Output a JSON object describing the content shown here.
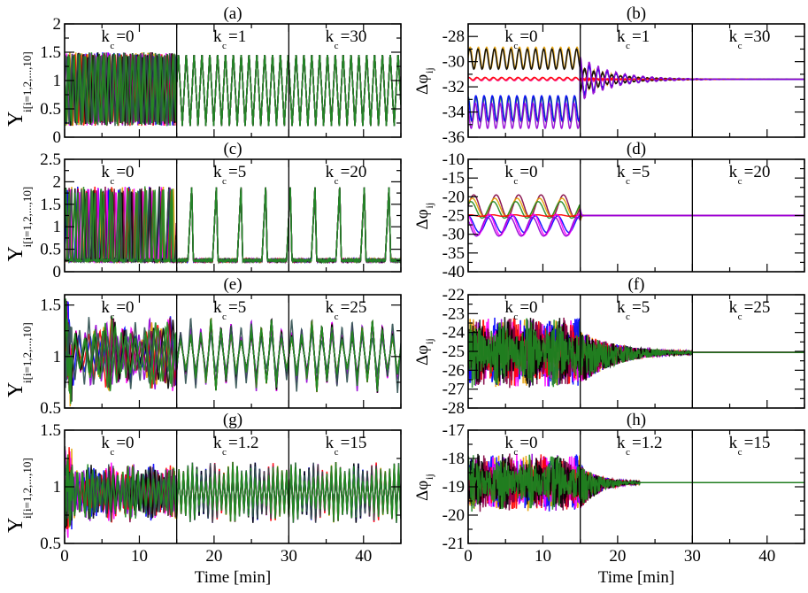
{
  "chart_data": [
    {
      "id": "a",
      "type": "line",
      "title": "(a)",
      "ylabel_main": "Y",
      "ylabel_sub": "i[i=1,2,...,10]",
      "xlabel": "",
      "xlim": [
        0,
        45
      ],
      "ylim": [
        0,
        2
      ],
      "yticks": [
        "0",
        "0.5",
        "1",
        "1.5",
        "2"
      ],
      "ytick_values": [
        0,
        0.5,
        1,
        1.5,
        2
      ],
      "xticks": [
        0,
        10,
        20,
        30,
        40
      ],
      "show_xtick_labels": false,
      "segments": [
        {
          "label": "k",
          "sub": "c",
          "value": "=0",
          "t0": 0,
          "t1": 15
        },
        {
          "label": "k",
          "sub": "c",
          "value": "=1",
          "t0": 15,
          "t1": 30
        },
        {
          "label": "k",
          "sub": "c",
          "value": "=30",
          "t0": 30,
          "t1": 45
        }
      ],
      "kind": "sine",
      "baseline": 0.85,
      "amp": 0.65,
      "period": 1.0,
      "series_count": 10
    },
    {
      "id": "b",
      "type": "line",
      "title": "(b)",
      "ylabel_main": "Δφ",
      "ylabel_sub": "ij",
      "xlabel": "",
      "xlim": [
        0,
        45
      ],
      "ylim": [
        -36,
        -27
      ],
      "yticks": [
        "-36",
        "-34",
        "-32",
        "-30",
        "-28"
      ],
      "ytick_values": [
        -36,
        -34,
        -32,
        -30,
        -28
      ],
      "xticks": [
        0,
        10,
        20,
        30,
        40
      ],
      "show_xtick_labels": false,
      "segments": [
        {
          "label": "k",
          "sub": "c",
          "value": "=0",
          "t0": 0,
          "t1": 15
        },
        {
          "label": "k",
          "sub": "c",
          "value": "=1",
          "t0": 15,
          "t1": 30
        },
        {
          "label": "k",
          "sub": "c",
          "value": "=30",
          "t0": 30,
          "t1": 45
        }
      ],
      "kind": "phase",
      "converge": -31.4,
      "bands": [
        {
          "color": "#e69f00",
          "center": -29.7,
          "amp": 0.85
        },
        {
          "color": "#000000",
          "center": -29.8,
          "amp": 0.8
        },
        {
          "color": "#ff1493",
          "center": -31.4,
          "amp": 0.12
        },
        {
          "color": "#ff0000",
          "center": -31.35,
          "amp": 0.1
        },
        {
          "color": "#228b22",
          "center": -33.8,
          "amp": 1.0
        },
        {
          "color": "#0000ff",
          "center": -33.7,
          "amp": 1.0
        },
        {
          "color": "#9400d3",
          "center": -34.3,
          "amp": 1.0
        }
      ],
      "settle_time": 30
    },
    {
      "id": "c",
      "type": "line",
      "title": "(c)",
      "ylabel_main": "Y",
      "ylabel_sub": "i[i=1,2,...,10]",
      "xlabel": "",
      "xlim": [
        0,
        45
      ],
      "ylim": [
        0,
        2.5
      ],
      "yticks": [
        "0",
        "0.5",
        "1",
        "1.5",
        "2",
        "2.5"
      ],
      "ytick_values": [
        0,
        0.5,
        1,
        1.5,
        2,
        2.5
      ],
      "xticks": [
        0,
        10,
        20,
        30,
        40
      ],
      "show_xtick_labels": false,
      "segments": [
        {
          "label": "k",
          "sub": "c",
          "value": "=0",
          "t0": 0,
          "t1": 15
        },
        {
          "label": "k",
          "sub": "c",
          "value": "=5",
          "t0": 15,
          "t1": 30
        },
        {
          "label": "k",
          "sub": "c",
          "value": "=20",
          "t0": 30,
          "t1": 45
        }
      ],
      "kind": "spike",
      "low": 0.25,
      "high": 1.9,
      "period_free": 1.2,
      "period_sync": 3.3,
      "series_count": 10
    },
    {
      "id": "d",
      "type": "line",
      "title": "(d)",
      "ylabel_main": "Δφ",
      "ylabel_sub": "ij",
      "xlabel": "",
      "xlim": [
        0,
        45
      ],
      "ylim": [
        -40,
        -10
      ],
      "yticks": [
        "-40",
        "-35",
        "-30",
        "-25",
        "-20",
        "-15",
        "-10"
      ],
      "ytick_values": [
        -40,
        -35,
        -30,
        -25,
        -20,
        -15,
        -10
      ],
      "xticks": [
        0,
        10,
        20,
        30,
        40
      ],
      "show_xtick_labels": false,
      "segments": [
        {
          "label": "k",
          "sub": "c",
          "value": "=0",
          "t0": 0,
          "t1": 15
        },
        {
          "label": "k",
          "sub": "c",
          "value": "=5",
          "t0": 15,
          "t1": 30
        },
        {
          "label": "k",
          "sub": "c",
          "value": "=20",
          "t0": 30,
          "t1": 45
        }
      ],
      "kind": "phase",
      "converge": -25,
      "bands": [
        {
          "color": "#800040",
          "center": -22.5,
          "amp": 3.0
        },
        {
          "color": "#e69f00",
          "center": -22.8,
          "amp": 2.4
        },
        {
          "color": "#228b22",
          "center": -23.5,
          "amp": 2.2
        },
        {
          "color": "#ff0000",
          "center": -25.0,
          "amp": 0.2
        },
        {
          "color": "#0000ff",
          "center": -27.3,
          "amp": 2.2
        },
        {
          "color": "#ff00ff",
          "center": -27.5,
          "amp": 2.8
        },
        {
          "color": "#9400d3",
          "center": -28.0,
          "amp": 2.5
        }
      ],
      "settle_time": 15.5
    },
    {
      "id": "e",
      "type": "line",
      "title": "(e)",
      "ylabel_main": "Y",
      "ylabel_sub": "i[i=1,2,...,10]",
      "xlabel": "",
      "xlim": [
        0,
        45
      ],
      "ylim": [
        0.5,
        1.6
      ],
      "yticks": [
        "0.5",
        "1",
        "1.5"
      ],
      "ytick_values": [
        0.5,
        1,
        1.5
      ],
      "xticks": [
        0,
        10,
        20,
        30,
        40
      ],
      "show_xtick_labels": false,
      "segments": [
        {
          "label": "k",
          "sub": "c",
          "value": "=0",
          "t0": 0,
          "t1": 15
        },
        {
          "label": "k",
          "sub": "c",
          "value": "=5",
          "t0": 15,
          "t1": 30
        },
        {
          "label": "k",
          "sub": "c",
          "value": "=25",
          "t0": 30,
          "t1": 45
        }
      ],
      "kind": "noisy",
      "low": 0.74,
      "high": 1.3,
      "period": 1.35,
      "series_count": 10
    },
    {
      "id": "f",
      "type": "line",
      "title": "(f)",
      "ylabel_main": "Δφ",
      "ylabel_sub": "ij",
      "xlabel": "",
      "xlim": [
        0,
        45
      ],
      "ylim": [
        -28,
        -22
      ],
      "yticks": [
        "-28",
        "-27",
        "-26",
        "-25",
        "-24",
        "-23",
        "-22"
      ],
      "ytick_values": [
        -28,
        -27,
        -26,
        -25,
        -24,
        -23,
        -22
      ],
      "xticks": [
        0,
        10,
        20,
        30,
        40
      ],
      "show_xtick_labels": false,
      "segments": [
        {
          "label": "k",
          "sub": "c",
          "value": "=0",
          "t0": 0,
          "t1": 15
        },
        {
          "label": "k",
          "sub": "c",
          "value": "=5",
          "t0": 15,
          "t1": 30
        },
        {
          "label": "k",
          "sub": "c",
          "value": "=25",
          "t0": 30,
          "t1": 45
        }
      ],
      "kind": "spiky_phase",
      "converge": -25.05,
      "amp0": 2.4,
      "settle_time": 30
    },
    {
      "id": "g",
      "type": "line",
      "title": "(g)",
      "ylabel_main": "Y",
      "ylabel_sub": "i[i=1,2,...,10]",
      "xlabel": "Time [min]",
      "xlim": [
        0,
        45
      ],
      "ylim": [
        0.5,
        1.5
      ],
      "yticks": [
        "0.5",
        "1",
        "1.5"
      ],
      "ytick_values": [
        0.5,
        1,
        1.5
      ],
      "xticks": [
        0,
        10,
        20,
        30,
        40
      ],
      "show_xtick_labels": true,
      "segments": [
        {
          "label": "k",
          "sub": "c",
          "value": "=0",
          "t0": 0,
          "t1": 15
        },
        {
          "label": "k",
          "sub": "c",
          "value": "=1.2",
          "t0": 15,
          "t1": 30
        },
        {
          "label": "k",
          "sub": "c",
          "value": "=15",
          "t0": 30,
          "t1": 45
        }
      ],
      "kind": "noisy",
      "low": 0.75,
      "high": 1.15,
      "period": 0.6,
      "series_count": 10
    },
    {
      "id": "h",
      "type": "line",
      "title": "(h)",
      "ylabel_main": "Δφ",
      "ylabel_sub": "ij",
      "xlabel": "Time [min]",
      "xlim": [
        0,
        45
      ],
      "ylim": [
        -21,
        -17
      ],
      "yticks": [
        "-21",
        "-20",
        "-19",
        "-18",
        "-17"
      ],
      "ytick_values": [
        -21,
        -20,
        -19,
        -18,
        -17
      ],
      "xticks": [
        0,
        10,
        20,
        30,
        40
      ],
      "show_xtick_labels": true,
      "segments": [
        {
          "label": "k",
          "sub": "c",
          "value": "=0",
          "t0": 0,
          "t1": 15
        },
        {
          "label": "k",
          "sub": "c",
          "value": "=1.2",
          "t0": 15,
          "t1": 30
        },
        {
          "label": "k",
          "sub": "c",
          "value": "=15",
          "t0": 30,
          "t1": 45
        }
      ],
      "kind": "spiky_phase",
      "converge": -18.85,
      "amp0": 1.3,
      "settle_time": 23
    }
  ],
  "palette": [
    "#9400d3",
    "#e69f00",
    "#0000ff",
    "#ff00ff",
    "#ff0000",
    "#800040",
    "#000000",
    "#228b22",
    "#2f4f4f",
    "#228b22"
  ]
}
